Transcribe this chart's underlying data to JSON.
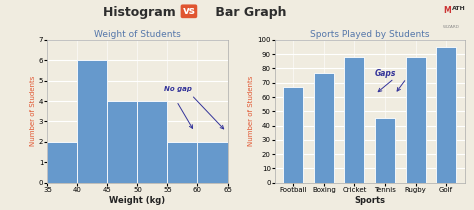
{
  "title_left": "Histogram ",
  "title_vs": "vs",
  "title_right": " Bar Graph",
  "title_color": "#2d2d2d",
  "background_color": "#f0ece0",
  "hist_title": "Weight of Students",
  "hist_title_color": "#5577aa",
  "hist_xlabel": "Weight (kg)",
  "hist_ylabel": "Number of Students",
  "hist_ylabel_color": "#e05530",
  "hist_xlabel_color": "#222222",
  "hist_bins_left": [
    35,
    40,
    45,
    50,
    55,
    60,
    65
  ],
  "hist_values": [
    2,
    6,
    4,
    4,
    2,
    2
  ],
  "hist_ylim": [
    0,
    7
  ],
  "hist_yticks": [
    0,
    1,
    2,
    3,
    4,
    5,
    6,
    7
  ],
  "hist_xticks": [
    35,
    40,
    45,
    50,
    55,
    60,
    65
  ],
  "hist_bar_color": "#6699cc",
  "hist_bar_edgecolor": "#ffffff",
  "hist_annotation": "No gap",
  "hist_annotation_color": "#333399",
  "bar_title": "Sports Played by Students",
  "bar_title_color": "#5577aa",
  "bar_xlabel": "Sports",
  "bar_ylabel": "Number of Students",
  "bar_ylabel_color": "#e05530",
  "bar_xlabel_color": "#222222",
  "bar_categories": [
    "Football",
    "Boxing",
    "Cricket",
    "Tennis",
    "Rugby",
    "Golf"
  ],
  "bar_values": [
    67,
    77,
    88,
    45,
    88,
    95
  ],
  "bar_ylim": [
    0,
    100
  ],
  "bar_yticks": [
    0,
    10,
    20,
    30,
    40,
    50,
    60,
    70,
    80,
    90,
    100
  ],
  "bar_bar_color": "#6699cc",
  "bar_bar_edgecolor": "#ffffff",
  "bar_annotation": "Gaps",
  "bar_annotation_color": "#333399"
}
